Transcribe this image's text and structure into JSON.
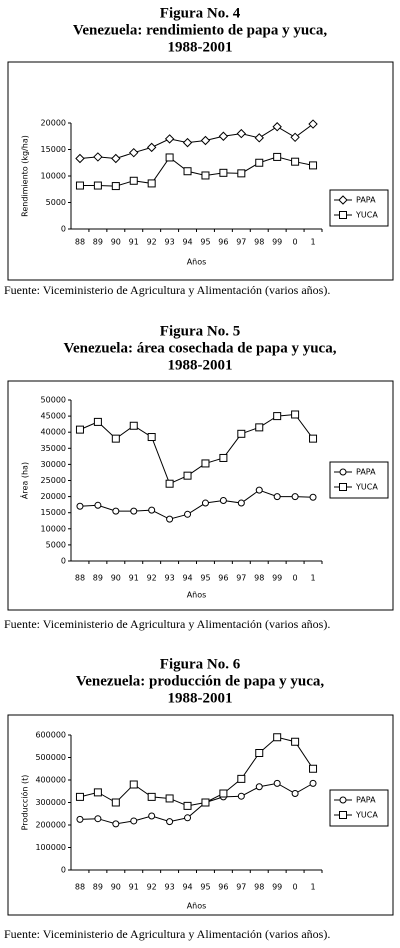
{
  "chart_data": [
    {
      "type": "line",
      "title": "Figura No. 4",
      "subtitle": "Venezuela: rendimiento de papa y yuca,",
      "period": "1988-2001",
      "x_label": "Años",
      "y_label": "Rendimiento (kg/ha)",
      "categories": [
        "88",
        "89",
        "90",
        "91",
        "92",
        "93",
        "94",
        "95",
        "96",
        "97",
        "98",
        "99",
        "0",
        "1"
      ],
      "ylim": [
        0,
        20000
      ],
      "yticks": [
        0,
        5000,
        10000,
        15000,
        20000
      ],
      "grid": false,
      "legend": "right",
      "series": [
        {
          "name": "PAPA",
          "color": "#000000",
          "marker": "diamond",
          "values": [
            13300,
            13600,
            13300,
            14400,
            15400,
            17000,
            16300,
            16700,
            17500,
            18000,
            17200,
            19300,
            17300,
            19800
          ]
        },
        {
          "name": "YUCA",
          "color": "#000000",
          "marker": "square",
          "values": [
            8200,
            8200,
            8100,
            9100,
            8600,
            13500,
            10900,
            10100,
            10600,
            10500,
            12500,
            13600,
            12700,
            12000
          ]
        }
      ],
      "source": "Fuente: Viceministerio de Agricultura y Alimentación (varios años)."
    },
    {
      "type": "line",
      "title": "Figura No. 5",
      "subtitle": "Venezuela: área cosechada de papa y yuca,",
      "period": "1988-2001",
      "x_label": "Años",
      "y_label": "Área (ha)",
      "categories": [
        "88",
        "89",
        "90",
        "91",
        "92",
        "93",
        "94",
        "95",
        "96",
        "97",
        "98",
        "99",
        "0",
        "1"
      ],
      "ylim": [
        0,
        50000
      ],
      "yticks": [
        0,
        5000,
        10000,
        15000,
        20000,
        25000,
        30000,
        35000,
        40000,
        45000,
        50000
      ],
      "grid": false,
      "legend": "right",
      "series": [
        {
          "name": "PAPA",
          "color": "#000000",
          "marker": "circle",
          "values": [
            17000,
            17300,
            15500,
            15500,
            15800,
            13000,
            14500,
            18000,
            18800,
            18000,
            22000,
            20000,
            20000,
            19800
          ]
        },
        {
          "name": "YUCA",
          "color": "#000000",
          "marker": "square",
          "values": [
            40800,
            43200,
            38000,
            42000,
            38500,
            24000,
            26500,
            30300,
            32000,
            39500,
            41500,
            45000,
            45500,
            38000
          ]
        }
      ],
      "source": "Fuente: Viceministerio de Agricultura y Alimentación (varios años)."
    },
    {
      "type": "line",
      "title": "Figura No. 6",
      "subtitle": "Venezuela: producción de papa y yuca,",
      "period": "1988-2001",
      "x_label": "Años",
      "y_label": "Producción (t)",
      "categories": [
        "88",
        "89",
        "90",
        "91",
        "92",
        "93",
        "94",
        "95",
        "96",
        "97",
        "98",
        "99",
        "0",
        "1"
      ],
      "ylim": [
        0,
        600000
      ],
      "yticks": [
        0,
        100000,
        200000,
        300000,
        400000,
        500000,
        600000
      ],
      "grid": false,
      "legend": "right",
      "series": [
        {
          "name": "PAPA",
          "color": "#000000",
          "marker": "circle",
          "values": [
            225000,
            228000,
            205000,
            218000,
            240000,
            215000,
            232000,
            300000,
            325000,
            328000,
            370000,
            385000,
            340000,
            385000
          ]
        },
        {
          "name": "YUCA",
          "color": "#000000",
          "marker": "square",
          "values": [
            325000,
            345000,
            300000,
            380000,
            325000,
            318000,
            285000,
            300000,
            340000,
            405000,
            520000,
            590000,
            570000,
            450000
          ]
        }
      ],
      "source": "Fuente: Viceministerio de Agricultura y Alimentación (varios años)."
    }
  ]
}
